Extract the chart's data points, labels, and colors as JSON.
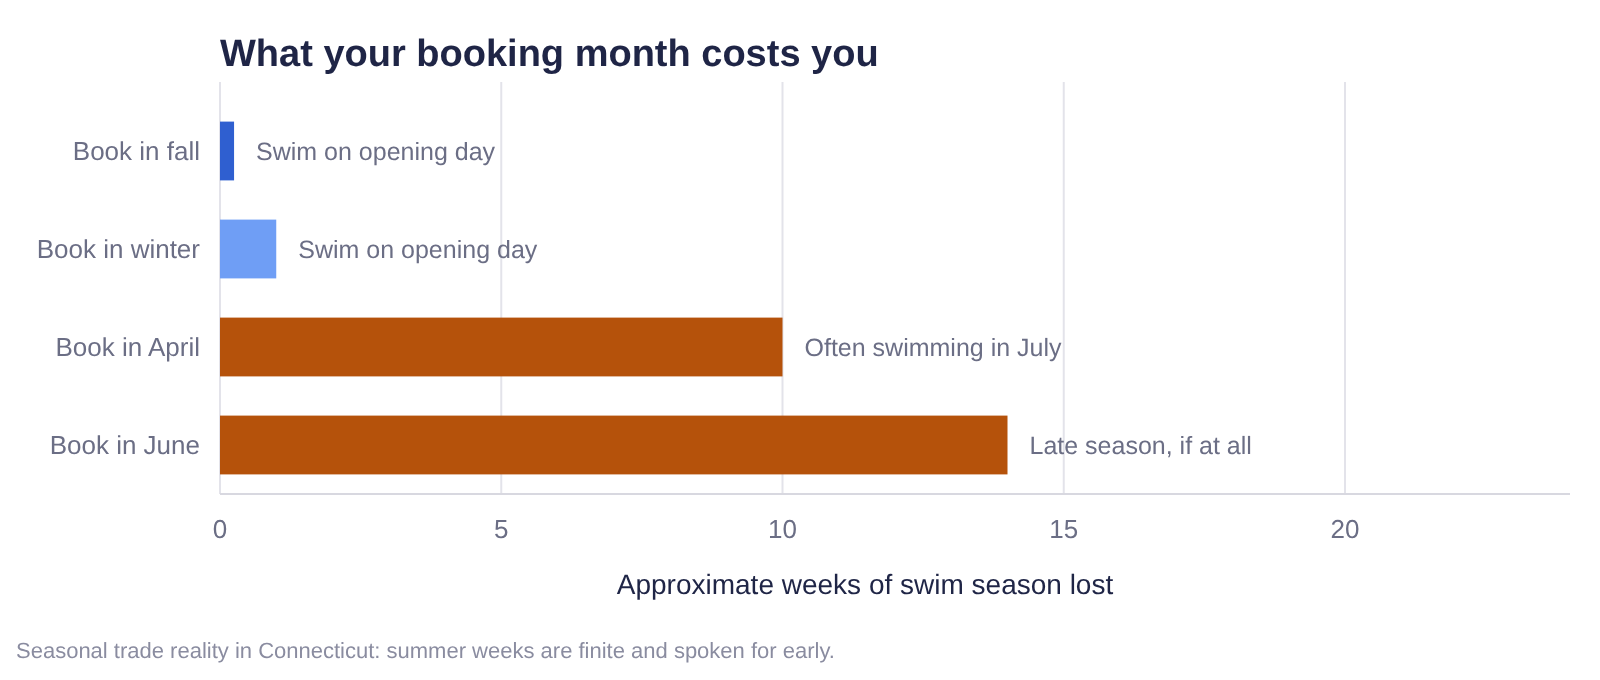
{
  "chart_data": {
    "type": "bar",
    "orientation": "horizontal",
    "title": "What your booking month costs you",
    "xlabel": "Approximate weeks of swim season lost",
    "categories": [
      "Book in fall",
      "Book in winter",
      "Book in April",
      "Book in June"
    ],
    "values": [
      0.25,
      1,
      10,
      14
    ],
    "colors": [
      "#2f5fd0",
      "#6f9ef5",
      "#b5520b",
      "#b5520b"
    ],
    "xlim": [
      0,
      24
    ],
    "xticks": [
      0,
      5,
      10,
      15,
      20
    ],
    "grid": "x",
    "annotations": [
      {
        "text": "Swim on opening day",
        "x": 0.25,
        "y": "Book in fall"
      },
      {
        "text": "Swim on opening day",
        "x": 1,
        "y": "Book in winter"
      },
      {
        "text": "Often swimming in July",
        "x": 10,
        "y": "Book in April"
      },
      {
        "text": "Late season, if at all",
        "x": 14,
        "y": "Book in June"
      },
      "Seasonal trade reality in Connecticut: summer weeks are finite and spoken for early."
    ]
  }
}
